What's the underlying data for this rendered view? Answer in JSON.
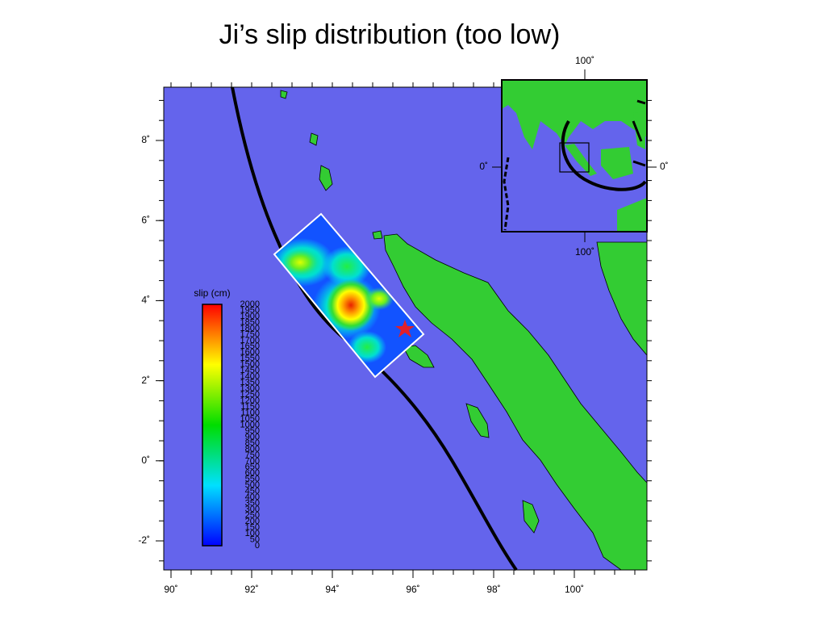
{
  "title": "Ji’s slip distribution (too low)",
  "map": {
    "lat_labels": [
      "8˚",
      "6˚",
      "4˚",
      "2˚",
      "0˚",
      "-2˚"
    ],
    "lon_labels": [
      "90˚",
      "92˚",
      "94˚",
      "96˚",
      "98˚",
      "100˚"
    ]
  },
  "inset": {
    "top_label": "100˚",
    "left_label": "0˚",
    "right_label": "0˚",
    "bottom_label": "100˚"
  },
  "colorbar": {
    "label": "slip (cm)",
    "ticks": [
      0,
      50,
      100,
      150,
      200,
      250,
      300,
      350,
      400,
      450,
      500,
      550,
      600,
      650,
      700,
      750,
      800,
      850,
      900,
      950,
      1000,
      1050,
      1100,
      1150,
      1200,
      1250,
      1300,
      1350,
      1400,
      1450,
      1500,
      1550,
      1600,
      1650,
      1700,
      1750,
      1800,
      1850,
      1900,
      1950,
      2000
    ]
  }
}
